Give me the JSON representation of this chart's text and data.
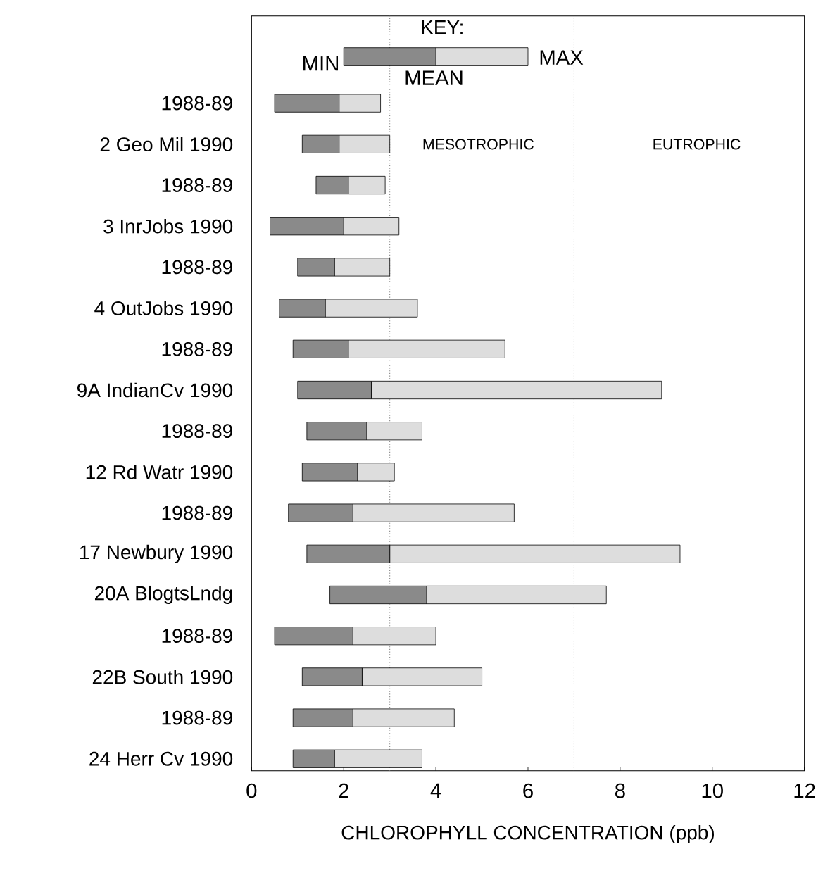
{
  "chart_data": {
    "type": "bar",
    "orientation": "horizontal",
    "categories": [
      "1988-89",
      "2 Geo Mil 1990",
      "1988-89",
      "3 InrJobs 1990",
      "1988-89",
      "4 OutJobs 1990",
      "1988-89",
      "9A IndianCv 1990",
      "1988-89",
      "12 Rd Watr 1990",
      "1988-89",
      "17 Newbury 1990",
      "20A BlogtsLndg",
      "1988-89",
      "22B South  1990",
      "1988-89",
      "24 Herr Cv 1990"
    ],
    "series": [
      {
        "color": "#8a8a8a",
        "base": [
          0.5,
          1.1,
          1.4,
          0.4,
          1.0,
          0.6,
          0.9,
          1.0,
          1.2,
          1.1,
          0.8,
          1.2,
          1.7,
          0.5,
          1.1,
          0.9,
          0.9
        ],
        "values": [
          1.4,
          0.8,
          0.7,
          1.6,
          0.8,
          1.0,
          1.2,
          1.6,
          1.3,
          1.2,
          1.4,
          1.8,
          2.1,
          1.7,
          1.3,
          1.3,
          0.9
        ]
      },
      {
        "color": "#dddddd",
        "base": [
          1.9,
          1.9,
          2.1,
          2.0,
          1.8,
          1.6,
          2.1,
          2.6,
          2.5,
          2.3,
          2.2,
          3.0,
          3.8,
          2.2,
          2.4,
          2.2,
          1.8
        ],
        "values": [
          0.9,
          1.1,
          0.8,
          1.2,
          1.2,
          2.0,
          3.4,
          6.3,
          1.2,
          0.8,
          3.5,
          6.3,
          3.9,
          1.8,
          2.6,
          2.2,
          1.9
        ]
      }
    ],
    "xlim": [
      0,
      12
    ],
    "xticks": [
      0,
      2,
      4,
      6,
      8,
      10,
      12
    ],
    "xlabel": "CHLOROPHYLL CONCENTRATION (ppb)",
    "ref_lines": [
      {
        "axis": "x",
        "value": 3,
        "color": "#808080",
        "line_style": "dotted"
      },
      {
        "axis": "x",
        "value": 7,
        "color": "#808080",
        "line_style": "dotted"
      }
    ],
    "legend_title": "KEY:",
    "annotations": [
      "MIN",
      "MEAN",
      "MAX",
      "MESOTROPHIC",
      "EUTROPHIC"
    ]
  }
}
